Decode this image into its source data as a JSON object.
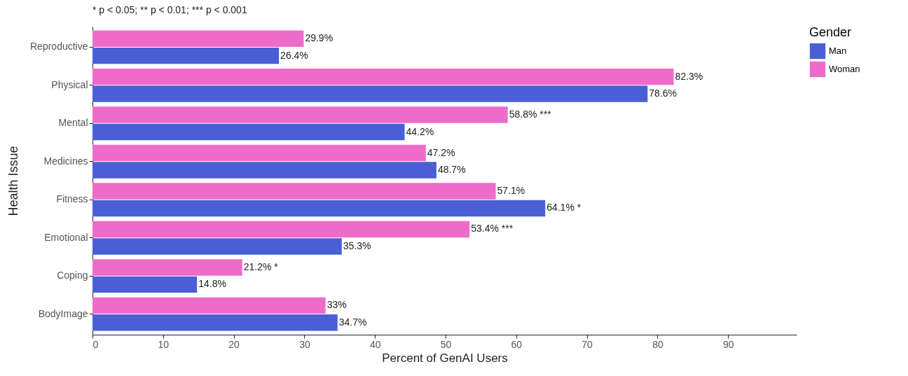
{
  "chart_data": {
    "type": "bar",
    "orientation": "horizontal",
    "title": "* p < 0.05; ** p < 0.01; *** p < 0.001",
    "xlabel": "Percent of GenAI Users",
    "ylabel": "Health Issue",
    "legend_title": "Gender",
    "legend": "right",
    "grid": false,
    "categories": [
      "Reproductive",
      "Physical",
      "Mental",
      "Medicines",
      "Fitness",
      "Emotional",
      "Coping",
      "BodyImage"
    ],
    "series": [
      {
        "name": "Man",
        "color": "#4a5fd6",
        "values": [
          26.4,
          78.6,
          44.2,
          48.7,
          64.1,
          35.3,
          14.8,
          34.7
        ],
        "value_labels": [
          "26.4%",
          "78.6%",
          "44.2%",
          "48.7%",
          "64.1%    *",
          "35.3%",
          "14.8%",
          "34.7%"
        ]
      },
      {
        "name": "Woman",
        "color": "#ee6cc9",
        "values": [
          29.9,
          82.3,
          58.8,
          47.2,
          57.1,
          53.4,
          21.2,
          33
        ],
        "value_labels": [
          "29.9%",
          "82.3%",
          "58.8% ***",
          "47.2%",
          "57.1%",
          "53.4% ***",
          "21.2%    *",
          "33%"
        ]
      }
    ],
    "xlim": [
      0,
      99.7
    ],
    "xticks": [
      0,
      10,
      20,
      30,
      40,
      50,
      60,
      70,
      80,
      90
    ]
  }
}
